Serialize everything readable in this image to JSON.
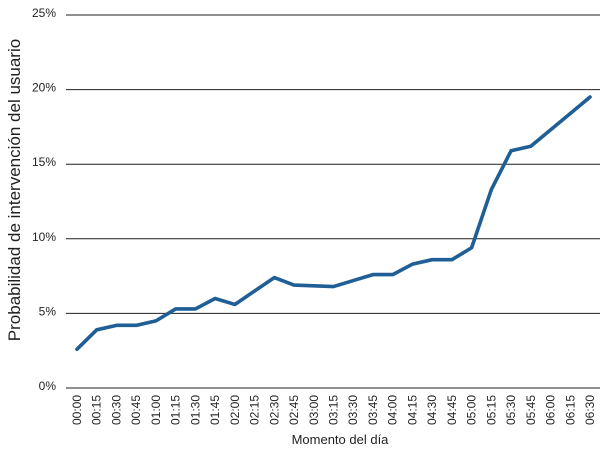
{
  "chart_data": {
    "type": "line",
    "title": "",
    "xlabel": "Momento del día",
    "ylabel": "Probabilidad de intervención del usuario",
    "x": [
      "00:00",
      "00:15",
      "00:30",
      "00:45",
      "01:00",
      "01:15",
      "01:30",
      "01:45",
      "02:00",
      "02:15",
      "02:30",
      "02:45",
      "03:00",
      "03:15",
      "03:30",
      "03:45",
      "04:00",
      "04:15",
      "04:30",
      "04:45",
      "05:00",
      "05:15",
      "05:30",
      "05:45",
      "06:00",
      "06:15",
      "06:30"
    ],
    "series": [
      {
        "values": [
          2.6,
          3.9,
          4.2,
          4.2,
          4.5,
          5.3,
          5.3,
          6.0,
          5.6,
          6.5,
          7.4,
          6.9,
          6.85,
          6.8,
          7.2,
          7.6,
          7.6,
          8.3,
          8.6,
          8.6,
          9.4,
          13.3,
          15.9,
          16.2,
          17.3,
          18.4,
          19.5
        ]
      }
    ],
    "yticks": [
      "0%",
      "5%",
      "10%",
      "15%",
      "20%",
      "25%"
    ],
    "ytick_values": [
      0,
      5,
      10,
      15,
      20,
      25
    ],
    "ylim": [
      0,
      25
    ],
    "grid": "horizontal",
    "line_color": "#1f5f96",
    "grid_color": "#231f20",
    "text_color": "#231f20"
  }
}
